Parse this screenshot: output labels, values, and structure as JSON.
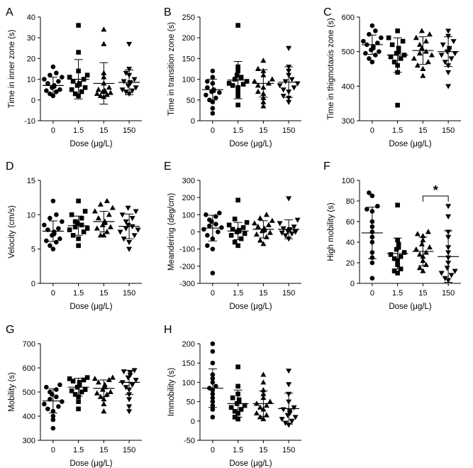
{
  "figure": {
    "xlabel": "Dose (μg/L)",
    "categories": [
      "0",
      "1.5",
      "15",
      "150"
    ]
  },
  "chart_data": [
    {
      "panel": "A",
      "type": "scatter",
      "ylabel": "Time in inner zone (s)",
      "ylim": [
        -10,
        40
      ],
      "yticks": [
        -10,
        0,
        10,
        20,
        30,
        40
      ],
      "categories": [
        "0",
        "1.5",
        "15",
        "150"
      ],
      "series": [
        {
          "name": "0",
          "marker": "circle",
          "mean": 7,
          "sd": 4,
          "values": [
            16,
            13,
            12,
            11,
            10,
            9,
            8,
            7,
            6.5,
            6,
            5,
            4.5,
            4,
            3,
            2
          ]
        },
        {
          "name": "1.5",
          "marker": "square",
          "mean": 10,
          "sd": 9.5,
          "values": [
            36,
            23,
            14,
            12,
            11,
            10,
            9,
            8,
            7.5,
            7,
            6,
            5,
            4,
            3,
            2
          ]
        },
        {
          "name": "15",
          "marker": "triangle-up",
          "mean": 8,
          "sd": 10,
          "values": [
            34,
            27,
            13,
            11,
            8,
            6,
            5,
            4.5,
            4,
            4,
            3.5,
            3,
            2.5,
            2,
            1.5
          ]
        },
        {
          "name": "150",
          "marker": "triangle-down",
          "mean": 8.5,
          "sd": 6,
          "values": [
            27,
            15,
            13,
            12,
            10,
            9,
            8.5,
            8,
            7,
            6,
            5,
            4.5,
            4,
            3
          ]
        }
      ]
    },
    {
      "panel": "B",
      "type": "scatter",
      "ylabel": "Time in transition zone (s)",
      "ylim": [
        0,
        250
      ],
      "yticks": [
        0,
        50,
        100,
        150,
        200,
        250
      ],
      "categories": [
        "0",
        "1.5",
        "15",
        "150"
      ],
      "series": [
        {
          "name": "0",
          "marker": "circle",
          "mean": 75,
          "sd": 25,
          "values": [
            120,
            105,
            95,
            90,
            80,
            75,
            72,
            70,
            68,
            62,
            55,
            50,
            45,
            30,
            18
          ]
        },
        {
          "name": "1.5",
          "marker": "square",
          "mean": 98,
          "sd": 45,
          "values": [
            230,
            130,
            120,
            110,
            105,
            100,
            95,
            90,
            88,
            85,
            80,
            70,
            60,
            38
          ]
        },
        {
          "name": "15",
          "marker": "triangle-up",
          "mean": 90,
          "sd": 33,
          "values": [
            145,
            125,
            120,
            110,
            100,
            95,
            90,
            85,
            80,
            70,
            65,
            55,
            45,
            35
          ]
        },
        {
          "name": "150",
          "marker": "triangle-down",
          "mean": 93,
          "sd": 37,
          "values": [
            175,
            130,
            120,
            110,
            100,
            95,
            90,
            85,
            80,
            75,
            70,
            60,
            55,
            45
          ]
        }
      ]
    },
    {
      "panel": "C",
      "type": "scatter",
      "ylabel": "Time in thigmotaxis zone (s)",
      "ylim": [
        300,
        600
      ],
      "yticks": [
        300,
        400,
        500,
        600
      ],
      "categories": [
        "0",
        "1.5",
        "15",
        "150"
      ],
      "series": [
        {
          "name": "0",
          "marker": "circle",
          "mean": 520,
          "sd": 28,
          "values": [
            575,
            560,
            550,
            540,
            530,
            525,
            520,
            515,
            510,
            505,
            500,
            495,
            490,
            480,
            470
          ]
        },
        {
          "name": "1.5",
          "marker": "square",
          "mean": 490,
          "sd": 50,
          "values": [
            560,
            540,
            530,
            520,
            510,
            500,
            495,
            490,
            485,
            480,
            470,
            460,
            440,
            345
          ]
        },
        {
          "name": "15",
          "marker": "triangle-up",
          "mean": 503,
          "sd": 40,
          "values": [
            560,
            550,
            540,
            530,
            520,
            510,
            500,
            495,
            490,
            480,
            470,
            460,
            450,
            430
          ]
        },
        {
          "name": "150",
          "marker": "triangle-down",
          "mean": 500,
          "sd": 43,
          "values": [
            560,
            545,
            530,
            520,
            510,
            505,
            500,
            495,
            490,
            480,
            470,
            460,
            440,
            400
          ]
        }
      ]
    },
    {
      "panel": "D",
      "type": "scatter",
      "ylabel": "Velocity (cm/s)",
      "ylim": [
        0,
        15
      ],
      "yticks": [
        0,
        5,
        10,
        15
      ],
      "categories": [
        "0",
        "1.5",
        "15",
        "150"
      ],
      "series": [
        {
          "name": "0",
          "marker": "circle",
          "mean": 7.6,
          "sd": 1.5,
          "values": [
            12,
            10,
            9.5,
            9,
            8.5,
            8,
            7.8,
            7.5,
            7.2,
            7,
            6.5,
            6.2,
            6,
            5.5,
            5
          ]
        },
        {
          "name": "1.5",
          "marker": "square",
          "mean": 8.4,
          "sd": 1.4,
          "values": [
            12,
            10.5,
            10,
            9.5,
            9,
            8.8,
            8.5,
            8.2,
            8,
            7.8,
            7.5,
            7,
            6.5,
            5.5
          ]
        },
        {
          "name": "15",
          "marker": "triangle-up",
          "mean": 9,
          "sd": 1.5,
          "values": [
            12,
            11.5,
            11,
            10.5,
            10,
            9.5,
            9,
            8.8,
            8.5,
            8.2,
            8,
            7.5,
            7,
            7
          ]
        },
        {
          "name": "150",
          "marker": "triangle-down",
          "mean": 8.3,
          "sd": 1.8,
          "values": [
            11,
            10.5,
            10,
            9.5,
            9,
            8.5,
            8.3,
            8,
            7.8,
            7.5,
            7,
            6.5,
            6,
            5
          ]
        }
      ]
    },
    {
      "panel": "E",
      "type": "scatter",
      "ylabel": "Meandering (deg/cm)",
      "ylim": [
        -300,
        300
      ],
      "yticks": [
        -300,
        -200,
        -100,
        0,
        100,
        200,
        300
      ],
      "categories": [
        "0",
        "1.5",
        "15",
        "150"
      ],
      "series": [
        {
          "name": "0",
          "marker": "circle",
          "mean": 22,
          "sd": 75,
          "values": [
            110,
            100,
            90,
            70,
            60,
            45,
            35,
            25,
            15,
            0,
            -20,
            -40,
            -80,
            -100,
            -240
          ]
        },
        {
          "name": "1.5",
          "marker": "square",
          "mean": 5,
          "sd": 50,
          "values": [
            185,
            75,
            55,
            40,
            25,
            15,
            10,
            5,
            0,
            -10,
            -20,
            -40,
            -60,
            -80
          ]
        },
        {
          "name": "15",
          "marker": "triangle-up",
          "mean": 15,
          "sd": 50,
          "values": [
            100,
            80,
            65,
            50,
            40,
            30,
            20,
            10,
            5,
            -5,
            -15,
            -30,
            -50,
            -70
          ]
        },
        {
          "name": "150",
          "marker": "triangle-down",
          "mean": 15,
          "sd": 55,
          "values": [
            195,
            70,
            50,
            30,
            20,
            15,
            10,
            5,
            0,
            -5,
            -10,
            -20,
            -40
          ]
        }
      ]
    },
    {
      "panel": "F",
      "type": "scatter",
      "ylabel": "High mobility (s)",
      "ylim": [
        0,
        100
      ],
      "yticks": [
        0,
        20,
        40,
        60,
        80,
        100
      ],
      "categories": [
        "0",
        "1.5",
        "15",
        "150"
      ],
      "significance": {
        "between": [
          "15",
          "150"
        ],
        "label": "*"
      },
      "series": [
        {
          "name": "0",
          "marker": "circle",
          "mean": 49,
          "sd": 25,
          "values": [
            88,
            85,
            75,
            72,
            70,
            60,
            55,
            50,
            45,
            40,
            30,
            25,
            20,
            5
          ]
        },
        {
          "name": "1.5",
          "marker": "square",
          "mean": 29,
          "sd": 15,
          "values": [
            76,
            42,
            38,
            35,
            33,
            30,
            28,
            26,
            24,
            22,
            18,
            14,
            12,
            10
          ]
        },
        {
          "name": "15",
          "marker": "triangle-up",
          "mean": 31,
          "sd": 14,
          "values": [
            50,
            48,
            46,
            42,
            38,
            35,
            33,
            30,
            28,
            26,
            22,
            18,
            15,
            12
          ]
        },
        {
          "name": "150",
          "marker": "triangle-down",
          "mean": 26,
          "sd": 25,
          "values": [
            75,
            65,
            50,
            45,
            35,
            30,
            25,
            20,
            15,
            12,
            10,
            8,
            5,
            3
          ]
        }
      ]
    },
    {
      "panel": "G",
      "type": "scatter",
      "ylabel": "Mobility (s)",
      "ylim": [
        300,
        700
      ],
      "yticks": [
        300,
        400,
        500,
        600,
        700
      ],
      "categories": [
        "0",
        "1.5",
        "15",
        "150"
      ],
      "series": [
        {
          "name": "0",
          "marker": "circle",
          "mean": 463,
          "sd": 50,
          "values": [
            530,
            520,
            510,
            500,
            490,
            480,
            470,
            460,
            450,
            440,
            430,
            420,
            400,
            385,
            350
          ]
        },
        {
          "name": "1.5",
          "marker": "square",
          "mean": 520,
          "sd": 37,
          "values": [
            560,
            555,
            550,
            545,
            540,
            530,
            520,
            510,
            505,
            500,
            490,
            480,
            460,
            430
          ]
        },
        {
          "name": "15",
          "marker": "triangle-up",
          "mean": 515,
          "sd": 35,
          "values": [
            560,
            555,
            550,
            540,
            530,
            520,
            510,
            500,
            495,
            490,
            480,
            470,
            450,
            420
          ]
        },
        {
          "name": "150",
          "marker": "triangle-down",
          "mean": 540,
          "sd": 50,
          "values": [
            590,
            585,
            580,
            570,
            560,
            550,
            540,
            530,
            520,
            510,
            490,
            470,
            440,
            420
          ]
        }
      ]
    },
    {
      "panel": "H",
      "type": "scatter",
      "ylabel": "Immobility (s)",
      "ylim": [
        -50,
        200
      ],
      "yticks": [
        -50,
        0,
        50,
        100,
        150,
        200
      ],
      "categories": [
        "0",
        "1.5",
        "15",
        "150"
      ],
      "series": [
        {
          "name": "0",
          "marker": "circle",
          "mean": 85,
          "sd": 50,
          "values": [
            200,
            180,
            150,
            120,
            110,
            100,
            90,
            85,
            80,
            70,
            60,
            50,
            40,
            30,
            10
          ]
        },
        {
          "name": "1.5",
          "marker": "square",
          "mean": 45,
          "sd": 35,
          "values": [
            140,
            90,
            70,
            60,
            55,
            50,
            45,
            40,
            35,
            30,
            25,
            20,
            10,
            5
          ]
        },
        {
          "name": "15",
          "marker": "triangle-up",
          "mean": 45,
          "sd": 33,
          "values": [
            120,
            100,
            80,
            70,
            60,
            50,
            45,
            40,
            35,
            30,
            20,
            15,
            10,
            5
          ]
        },
        {
          "name": "150",
          "marker": "triangle-down",
          "mean": 32,
          "sd": 40,
          "values": [
            130,
            95,
            70,
            50,
            35,
            30,
            25,
            20,
            15,
            10,
            5,
            0,
            -5,
            -10
          ]
        }
      ]
    }
  ]
}
